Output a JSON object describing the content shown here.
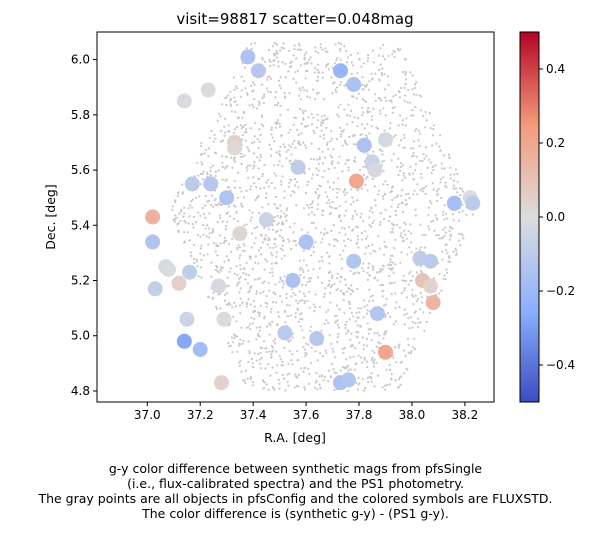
{
  "chart_data": {
    "type": "scatter",
    "title": "visit=98817  scatter=0.048mag",
    "xlabel": "R.A. [deg]",
    "ylabel": "Dec. [deg]",
    "xlim": [
      36.81,
      38.31
    ],
    "ylim": [
      4.76,
      6.1
    ],
    "xticks": [
      37.0,
      37.2,
      37.4,
      37.6,
      37.8,
      38.0,
      38.2
    ],
    "xtick_labels": [
      "37.0",
      "37.2",
      "37.4",
      "37.6",
      "37.8",
      "38.0",
      "38.2"
    ],
    "yticks": [
      4.8,
      5.0,
      5.2,
      5.4,
      5.6,
      5.8,
      6.0
    ],
    "ytick_labels": [
      "4.8",
      "5.0",
      "5.2",
      "5.4",
      "5.6",
      "5.8",
      "6.0"
    ],
    "grid": false,
    "colormap": "coolwarm",
    "colorbar": {
      "vmin": -0.5,
      "vmax": 0.5,
      "ticks": [
        -0.4,
        -0.2,
        0.0,
        0.2,
        0.4
      ],
      "tick_labels": [
        "−0.4",
        "−0.2",
        "0.0",
        "0.2",
        "0.4"
      ],
      "low_color": "#3b4cc0",
      "mid_color": "#dddddd",
      "high_color": "#b40426"
    },
    "background_points": {
      "description_shown": "all objects in pfsConfig",
      "color": "#c8c8c8",
      "count_approx": 2300,
      "region_vertices": [
        [
          37.38,
          6.06
        ],
        [
          37.95,
          6.06
        ],
        [
          38.24,
          5.45
        ],
        [
          37.95,
          4.8
        ],
        [
          37.38,
          4.8
        ],
        [
          37.08,
          5.45
        ]
      ]
    },
    "fluxstd_points": [
      {
        "ra": 37.38,
        "dec": 6.01,
        "v": -0.15
      },
      {
        "ra": 37.42,
        "dec": 5.96,
        "v": -0.12
      },
      {
        "ra": 37.73,
        "dec": 5.96,
        "v": -0.22
      },
      {
        "ra": 37.78,
        "dec": 5.91,
        "v": -0.15
      },
      {
        "ra": 37.14,
        "dec": 5.85,
        "v": -0.01
      },
      {
        "ra": 37.23,
        "dec": 5.89,
        "v": 0.01
      },
      {
        "ra": 37.33,
        "dec": 5.7,
        "v": 0.05
      },
      {
        "ra": 37.33,
        "dec": 5.68,
        "v": 0.02
      },
      {
        "ra": 37.82,
        "dec": 5.69,
        "v": -0.15
      },
      {
        "ra": 37.9,
        "dec": 5.71,
        "v": -0.03
      },
      {
        "ra": 37.85,
        "dec": 5.63,
        "v": -0.06
      },
      {
        "ra": 37.86,
        "dec": 5.6,
        "v": -0.02
      },
      {
        "ra": 37.79,
        "dec": 5.56,
        "v": 0.2
      },
      {
        "ra": 37.57,
        "dec": 5.61,
        "v": -0.09
      },
      {
        "ra": 37.17,
        "dec": 5.55,
        "v": -0.1
      },
      {
        "ra": 37.24,
        "dec": 5.55,
        "v": -0.12
      },
      {
        "ra": 37.3,
        "dec": 5.5,
        "v": -0.14
      },
      {
        "ra": 37.02,
        "dec": 5.43,
        "v": 0.16
      },
      {
        "ra": 37.02,
        "dec": 5.34,
        "v": -0.14
      },
      {
        "ra": 37.45,
        "dec": 5.42,
        "v": -0.06
      },
      {
        "ra": 37.35,
        "dec": 5.37,
        "v": 0.03
      },
      {
        "ra": 37.6,
        "dec": 5.34,
        "v": -0.15
      },
      {
        "ra": 37.78,
        "dec": 5.27,
        "v": -0.13
      },
      {
        "ra": 38.16,
        "dec": 5.48,
        "v": -0.17
      },
      {
        "ra": 38.22,
        "dec": 5.5,
        "v": -0.01
      },
      {
        "ra": 38.23,
        "dec": 5.48,
        "v": -0.1
      },
      {
        "ra": 38.03,
        "dec": 5.28,
        "v": -0.09
      },
      {
        "ra": 38.07,
        "dec": 5.27,
        "v": -0.11
      },
      {
        "ra": 37.07,
        "dec": 5.25,
        "v": -0.03
      },
      {
        "ra": 37.08,
        "dec": 5.24,
        "v": -0.01
      },
      {
        "ra": 37.16,
        "dec": 5.23,
        "v": -0.09
      },
      {
        "ra": 37.12,
        "dec": 5.19,
        "v": 0.05
      },
      {
        "ra": 37.03,
        "dec": 5.17,
        "v": -0.08
      },
      {
        "ra": 37.27,
        "dec": 5.18,
        "v": -0.02
      },
      {
        "ra": 37.55,
        "dec": 5.2,
        "v": -0.15
      },
      {
        "ra": 38.04,
        "dec": 5.2,
        "v": 0.1
      },
      {
        "ra": 38.07,
        "dec": 5.18,
        "v": 0.04
      },
      {
        "ra": 38.08,
        "dec": 5.12,
        "v": 0.15
      },
      {
        "ra": 37.87,
        "dec": 5.08,
        "v": -0.13
      },
      {
        "ra": 37.15,
        "dec": 5.06,
        "v": -0.05
      },
      {
        "ra": 37.29,
        "dec": 5.06,
        "v": -0.01
      },
      {
        "ra": 37.52,
        "dec": 5.01,
        "v": -0.11
      },
      {
        "ra": 37.64,
        "dec": 4.99,
        "v": -0.12
      },
      {
        "ra": 37.14,
        "dec": 4.98,
        "v": -0.27
      },
      {
        "ra": 37.2,
        "dec": 4.95,
        "v": -0.18
      },
      {
        "ra": 37.9,
        "dec": 4.94,
        "v": 0.2
      },
      {
        "ra": 37.73,
        "dec": 4.83,
        "v": -0.15
      },
      {
        "ra": 37.76,
        "dec": 4.84,
        "v": -0.13
      },
      {
        "ra": 37.28,
        "dec": 4.83,
        "v": 0.04
      }
    ]
  },
  "caption": {
    "line1": "g-y color difference between synthetic mags from pfsSingle",
    "line2": "(i.e., flux-calibrated spectra) and the PS1 photometry.",
    "line3": "The gray points are all objects in pfsConfig and the colored symbols are FLUXSTD.",
    "line4": "The color difference is (synthetic g-y) - (PS1 g-y)."
  }
}
